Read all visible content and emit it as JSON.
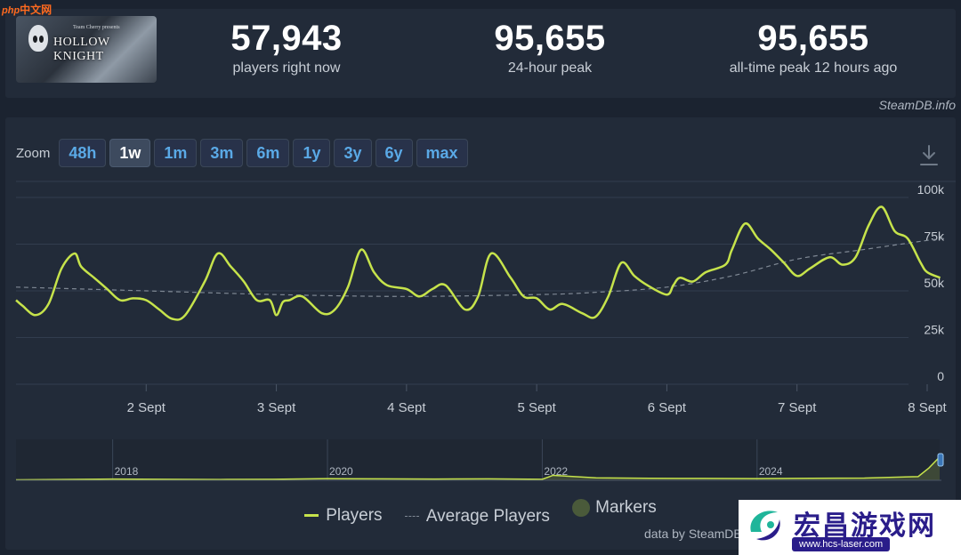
{
  "site_mark": {
    "prefix": "php",
    "text": "中文网"
  },
  "game": {
    "title": "HOLLOW KNIGHT",
    "subtitle": "Team Cherry presents"
  },
  "stats": [
    {
      "value": "57,943",
      "label": "players right now"
    },
    {
      "value": "95,655",
      "label": "24-hour peak"
    },
    {
      "value": "95,655",
      "label": "all-time peak 12 hours ago"
    }
  ],
  "credit": "SteamDB.info",
  "zoom": {
    "label": "Zoom",
    "options": [
      "48h",
      "1w",
      "1m",
      "3m",
      "6m",
      "1y",
      "3y",
      "6y",
      "max"
    ],
    "active": "1w"
  },
  "colors": {
    "players": "#c6e34b",
    "average": "#7f8894",
    "markers": "#4a5a3a",
    "grid": "#323d4e",
    "axis_text": "#c8ced6"
  },
  "legend": {
    "players": "Players",
    "average": "Average Players",
    "markers": "Markers"
  },
  "data_by": "data by SteamDB",
  "watermark": {
    "title": "宏昌游戏网",
    "url": "www.hcs-laser.com"
  },
  "chart_data": {
    "type": "line",
    "title": "",
    "xlabel": "",
    "ylabel": "",
    "ylim": [
      0,
      100000
    ],
    "xlim": [
      0,
      7.13
    ],
    "x_ticks": [
      {
        "x": 1,
        "label": "2 Sept"
      },
      {
        "x": 2,
        "label": "3 Sept"
      },
      {
        "x": 3,
        "label": "4 Sept"
      },
      {
        "x": 4,
        "label": "5 Sept"
      },
      {
        "x": 5,
        "label": "6 Sept"
      },
      {
        "x": 6,
        "label": "7 Sept"
      },
      {
        "x": 7,
        "label": "8 Sept"
      }
    ],
    "y_ticks": [
      {
        "value": 0,
        "label": "0"
      },
      {
        "value": 25000,
        "label": "25k"
      },
      {
        "value": 50000,
        "label": "50k"
      },
      {
        "value": 75000,
        "label": "75k"
      },
      {
        "value": 100000,
        "label": "100k"
      }
    ],
    "grid": true,
    "series": [
      {
        "name": "Players",
        "x": [
          0,
          0.05,
          0.15,
          0.25,
          0.35,
          0.45,
          0.5,
          0.6,
          0.7,
          0.8,
          0.9,
          1.0,
          1.1,
          1.2,
          1.3,
          1.45,
          1.55,
          1.65,
          1.75,
          1.85,
          1.95,
          2.0,
          2.05,
          2.1,
          2.2,
          2.35,
          2.45,
          2.55,
          2.65,
          2.75,
          2.85,
          3.0,
          3.1,
          3.2,
          3.3,
          3.45,
          3.55,
          3.65,
          3.8,
          3.9,
          4.0,
          4.1,
          4.2,
          4.35,
          4.45,
          4.55,
          4.65,
          4.75,
          4.85,
          5.0,
          5.05,
          5.1,
          5.2,
          5.3,
          5.45,
          5.5,
          5.6,
          5.7,
          5.8,
          5.9,
          6.0,
          6.1,
          6.25,
          6.35,
          6.45,
          6.55,
          6.65,
          6.75,
          6.85,
          6.95,
          7.0,
          7.1
        ],
        "values": [
          45000,
          42000,
          37000,
          43000,
          62000,
          70000,
          63000,
          57000,
          51000,
          45000,
          46000,
          45000,
          40000,
          35000,
          37000,
          55000,
          70000,
          63000,
          55000,
          45000,
          45000,
          37000,
          44000,
          45000,
          47000,
          38000,
          40000,
          52000,
          72000,
          60000,
          53000,
          51000,
          47000,
          51000,
          53000,
          40000,
          47000,
          70000,
          57000,
          47000,
          46000,
          40000,
          43000,
          38000,
          36000,
          47000,
          65000,
          58000,
          53000,
          48000,
          53000,
          57000,
          55000,
          60000,
          64000,
          72000,
          86000,
          78000,
          72000,
          65000,
          58000,
          62000,
          68000,
          64000,
          68000,
          85000,
          95000,
          82000,
          78000,
          65000,
          60000,
          57000
        ]
      },
      {
        "name": "Average Players",
        "x": [
          0,
          1,
          2,
          3,
          4,
          4.4,
          5,
          5.5,
          6,
          6.5,
          7,
          7.13
        ],
        "values": [
          52000,
          50000,
          48000,
          47000,
          48000,
          49000,
          52000,
          58000,
          67000,
          72000,
          77000,
          78000
        ]
      }
    ],
    "navigator": {
      "year_labels": [
        "2018",
        "2020",
        "2022",
        "2024"
      ],
      "x": [
        2017.1,
        2017.5,
        2018.0,
        2018.5,
        2019.0,
        2019.5,
        2020.0,
        2020.5,
        2021.0,
        2021.5,
        2022.0,
        2022.1,
        2022.5,
        2023.0,
        2023.5,
        2024.0,
        2024.5,
        2025.0,
        2025.5,
        2025.6,
        2025.7
      ],
      "values": [
        1000,
        2000,
        3000,
        2500,
        2000,
        2500,
        4000,
        3500,
        3000,
        3500,
        2500,
        12000,
        6000,
        5000,
        4500,
        4000,
        5000,
        5500,
        9000,
        30000,
        57000
      ],
      "xlim": [
        2017.1,
        2025.7
      ]
    }
  }
}
